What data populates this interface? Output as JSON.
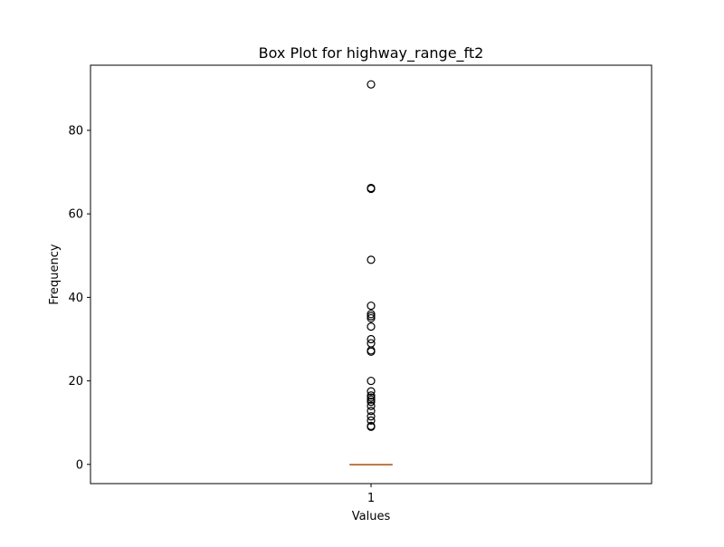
{
  "chart_data": {
    "type": "box",
    "title": "Box Plot for highway_range_ft2",
    "xlabel": "Values",
    "ylabel": "Frequency",
    "categories": [
      "1"
    ],
    "ylim": [
      -4.6,
      95.6
    ],
    "yticks": [
      0,
      20,
      40,
      60,
      80
    ],
    "grid": false,
    "boxes": [
      {
        "category": "1",
        "whisker_low": 0,
        "q1": 0,
        "median": 0,
        "q3": 0,
        "whisker_high": 0,
        "outliers": [
          9,
          9.2,
          10.5,
          11.5,
          12.8,
          14,
          15,
          15.5,
          16,
          16.5,
          17.5,
          20,
          27,
          27.3,
          29,
          30,
          33,
          35,
          35.5,
          36,
          38,
          49,
          66,
          66.2,
          91
        ]
      }
    ],
    "colors": {
      "median": "#e07b39",
      "box": "#000000",
      "outlier_edge": "#000000"
    }
  }
}
